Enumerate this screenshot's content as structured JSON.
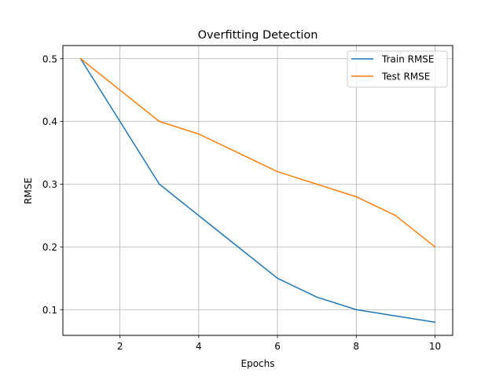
{
  "chart_data": {
    "type": "line",
    "title": "Overfitting Detection",
    "xlabel": "Epochs",
    "ylabel": "RMSE",
    "x": [
      1,
      2,
      3,
      4,
      5,
      6,
      7,
      8,
      9,
      10
    ],
    "xlim": [
      0.55,
      10.45
    ],
    "ylim": [
      0.059,
      0.521
    ],
    "xticks": [
      2,
      4,
      6,
      8,
      10
    ],
    "xtick_labels": [
      "2",
      "4",
      "6",
      "8",
      "10"
    ],
    "yticks": [
      0.1,
      0.2,
      0.3,
      0.4,
      0.5
    ],
    "ytick_labels": [
      "0.1",
      "0.2",
      "0.3",
      "0.4",
      "0.5"
    ],
    "grid": true,
    "legend_position": "top-right",
    "series": [
      {
        "name": "Train RMSE",
        "color": "#1f77b4",
        "values": [
          0.5,
          0.4,
          0.3,
          0.25,
          0.2,
          0.15,
          0.12,
          0.1,
          0.09,
          0.08
        ]
      },
      {
        "name": "Test RMSE",
        "color": "#ff7f0e",
        "values": [
          0.5,
          0.45,
          0.4,
          0.38,
          0.35,
          0.32,
          0.3,
          0.28,
          0.25,
          0.2
        ]
      }
    ]
  }
}
